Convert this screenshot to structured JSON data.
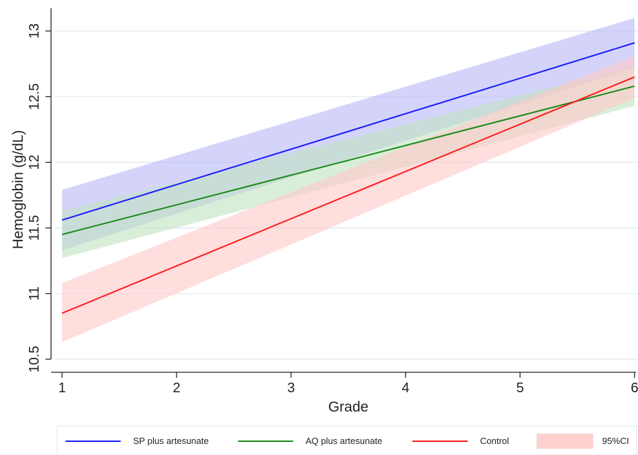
{
  "chart_data": {
    "type": "line",
    "xlabel": "Grade",
    "ylabel": "Hemoglobin (g/dL)",
    "xlim": [
      1,
      6
    ],
    "ylim": [
      10.5,
      13
    ],
    "x_ticks": [
      1,
      2,
      3,
      4,
      5,
      6
    ],
    "y_ticks": [
      10.5,
      11,
      11.5,
      12,
      12.5,
      13
    ],
    "y_tick_labels": [
      "10.5",
      "11",
      "11.5",
      "12",
      "12.5",
      "13"
    ],
    "grid": true,
    "legend_position": "bottom",
    "x": [
      1,
      6
    ],
    "series": [
      {
        "name": "SP plus artesunate",
        "color": "#1a1aff",
        "band_color": "#b8b8f8",
        "values": [
          11.56,
          12.91
        ],
        "lower": [
          11.33,
          12.72
        ],
        "upper": [
          11.79,
          13.1
        ]
      },
      {
        "name": "AQ plus artesunate",
        "color": "#188a18",
        "band_color": "#bfe3bf",
        "values": [
          11.45,
          12.58
        ],
        "lower": [
          11.27,
          12.43
        ],
        "upper": [
          11.63,
          12.73
        ]
      },
      {
        "name": "Control",
        "color": "#ff1a1a",
        "band_color": "#ffc8c8",
        "values": [
          10.85,
          12.65
        ],
        "lower": [
          10.63,
          12.49
        ],
        "upper": [
          11.08,
          12.81
        ]
      }
    ],
    "ci_legend_label": "95%CI"
  }
}
